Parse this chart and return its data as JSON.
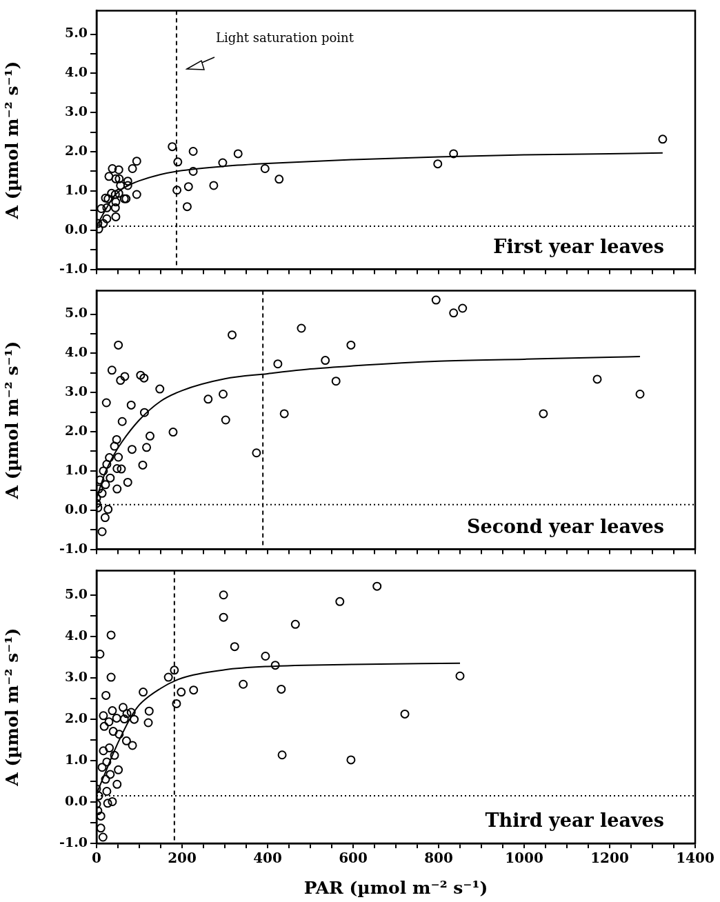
{
  "chart_data": [
    {
      "type": "scatter",
      "ylabel": "A (µmol m⁻² s⁻¹)",
      "xlim": [
        0,
        1400
      ],
      "ylim": [
        -1,
        5.6
      ],
      "tick_labels": "y",
      "xticks": [
        0,
        {
          "value": 50,
          "label": null
        },
        {
          "value": 100,
          "label": null
        },
        {
          "value": 150,
          "label": null
        },
        200,
        {
          "value": 250,
          "label": null
        },
        {
          "value": 300,
          "label": null
        },
        {
          "value": 350,
          "label": null
        },
        400,
        {
          "value": 450,
          "label": null
        },
        {
          "value": 500,
          "label": null
        },
        {
          "value": 550,
          "label": null
        },
        600,
        {
          "value": 650,
          "label": null
        },
        {
          "value": 700,
          "label": null
        },
        {
          "value": 750,
          "label": null
        },
        800,
        {
          "value": 850,
          "label": null
        },
        {
          "value": 900,
          "label": null
        },
        {
          "value": 950,
          "label": null
        },
        1000,
        {
          "value": 1050,
          "label": null
        },
        {
          "value": 1100,
          "label": null
        },
        {
          "value": 1150,
          "label": null
        },
        1200,
        {
          "value": 1250,
          "label": null
        },
        {
          "value": 1300,
          "label": null
        },
        {
          "value": 1350,
          "label": null
        },
        1400
      ],
      "yticks": [
        {
          "value": -1,
          "label": "-1.0"
        },
        {
          "value": -0.5,
          "label": null
        },
        {
          "value": 0,
          "label": "0.0"
        },
        {
          "value": 0.5,
          "label": null
        },
        {
          "value": 1,
          "label": "1.0"
        },
        {
          "value": 1.5,
          "label": null
        },
        {
          "value": 2,
          "label": "2.0"
        },
        {
          "value": 2.5,
          "label": null
        },
        {
          "value": 3,
          "label": "3.0"
        },
        {
          "value": 3.5,
          "label": null
        },
        {
          "value": 4,
          "label": "4.0"
        },
        {
          "value": 4.5,
          "label": null
        },
        {
          "value": 5,
          "label": "5.0"
        }
      ],
      "series": [
        {
          "type": "scatter",
          "marker": "circle",
          "color": "#000000",
          "x": [
            5,
            3,
            11,
            27,
            24,
            29,
            37,
            52,
            45,
            53,
            56,
            73,
            73,
            65,
            69,
            44,
            35,
            52,
            21,
            45,
            44,
            45,
            24,
            16,
            84,
            94,
            94,
            177,
            190,
            188,
            215,
            212,
            226,
            226,
            274,
            295,
            331,
            394,
            427,
            798,
            835,
            1324
          ],
          "values": [
            0.03,
            0.17,
            0.55,
            0.8,
            0.57,
            1.37,
            1.57,
            1.54,
            1.31,
            1.31,
            1.14,
            1.25,
            1.14,
            0.8,
            0.8,
            0.91,
            0.94,
            0.94,
            0.82,
            0.72,
            0.57,
            0.34,
            0.29,
            0.17,
            1.57,
            1.76,
            0.91,
            2.13,
            1.74,
            1.02,
            1.11,
            0.6,
            2.01,
            1.5,
            1.14,
            1.72,
            1.95,
            1.57,
            1.3,
            1.69,
            1.95,
            2.32
          ]
        },
        {
          "type": "line",
          "marker": "none",
          "color": "#000000",
          "x": [
            0,
            20,
            40,
            60,
            80,
            100,
            150,
            200,
            300,
            400,
            600,
            800,
            1000,
            1200,
            1324
          ],
          "values": [
            0.1,
            0.5,
            0.85,
            1.05,
            1.17,
            1.26,
            1.42,
            1.52,
            1.63,
            1.7,
            1.8,
            1.87,
            1.92,
            1.95,
            1.97
          ]
        }
      ],
      "ref_lines": [
        {
          "axis": "x",
          "value": 187,
          "line_style": "dashed"
        },
        {
          "axis": "y",
          "value": 0.1,
          "line_style": "dotted"
        }
      ],
      "annotations": [
        "First year leaves",
        "Light saturation point"
      ]
    },
    {
      "type": "scatter",
      "ylabel": "A (µmol m⁻² s⁻¹)",
      "xlim": [
        0,
        1400
      ],
      "ylim": [
        -1,
        5.6
      ],
      "tick_labels": "y",
      "xticks": [
        0,
        {
          "value": 50,
          "label": null
        },
        {
          "value": 100,
          "label": null
        },
        {
          "value": 150,
          "label": null
        },
        200,
        {
          "value": 250,
          "label": null
        },
        {
          "value": 300,
          "label": null
        },
        {
          "value": 350,
          "label": null
        },
        400,
        {
          "value": 450,
          "label": null
        },
        {
          "value": 500,
          "label": null
        },
        {
          "value": 550,
          "label": null
        },
        600,
        {
          "value": 650,
          "label": null
        },
        {
          "value": 700,
          "label": null
        },
        {
          "value": 750,
          "label": null
        },
        800,
        {
          "value": 850,
          "label": null
        },
        {
          "value": 900,
          "label": null
        },
        {
          "value": 950,
          "label": null
        },
        1000,
        {
          "value": 1050,
          "label": null
        },
        {
          "value": 1100,
          "label": null
        },
        {
          "value": 1150,
          "label": null
        },
        1200,
        {
          "value": 1250,
          "label": null
        },
        {
          "value": 1300,
          "label": null
        },
        {
          "value": 1350,
          "label": null
        },
        1400
      ],
      "yticks": [
        {
          "value": -1,
          "label": "-1.0"
        },
        {
          "value": -0.5,
          "label": null
        },
        {
          "value": 0,
          "label": "0.0"
        },
        {
          "value": 0.5,
          "label": null
        },
        {
          "value": 1,
          "label": "1.0"
        },
        {
          "value": 1.5,
          "label": null
        },
        {
          "value": 2,
          "label": "2.0"
        },
        {
          "value": 2.5,
          "label": null
        },
        {
          "value": 3,
          "label": "3.0"
        },
        {
          "value": 3.5,
          "label": null
        },
        {
          "value": 4,
          "label": "4.0"
        },
        {
          "value": 4.5,
          "label": null
        },
        {
          "value": 5,
          "label": "5.0"
        }
      ],
      "series": [
        {
          "type": "scatter",
          "marker": "circle",
          "color": "#000000",
          "x": [
            51,
            36,
            56,
            66,
            103,
            111,
            148,
            23,
            81,
            112,
            60,
            125,
            179,
            83,
            117,
            108,
            47,
            42,
            51,
            30,
            58,
            48,
            73,
            48,
            24,
            16,
            32,
            8,
            21,
            5,
            13,
            0,
            0,
            3,
            27,
            20,
            13,
            261,
            296,
            302,
            317,
            374,
            424,
            439,
            479,
            535,
            560,
            595,
            794,
            835,
            856,
            1045,
            1171,
            1271
          ],
          "values": [
            4.21,
            3.57,
            3.31,
            3.41,
            3.44,
            3.37,
            3.09,
            2.74,
            2.68,
            2.49,
            2.26,
            1.89,
            1.99,
            1.55,
            1.6,
            1.15,
            1.8,
            1.63,
            1.35,
            1.34,
            1.05,
            1.06,
            0.71,
            0.54,
            1.17,
            1.0,
            0.82,
            0.77,
            0.65,
            0.54,
            0.43,
            0.31,
            0.17,
            0.06,
            0.02,
            -0.19,
            -0.55,
            2.83,
            2.96,
            2.3,
            4.47,
            1.46,
            3.73,
            2.46,
            4.64,
            3.82,
            3.29,
            4.21,
            5.36,
            5.03,
            5.15,
            2.46,
            3.34,
            2.96
          ]
        },
        {
          "type": "line",
          "marker": "none",
          "color": "#000000",
          "x": [
            0,
            20,
            40,
            60,
            100,
            150,
            200,
            300,
            400,
            500,
            600,
            800,
            1000,
            1200,
            1271
          ],
          "values": [
            0.3,
            0.95,
            1.4,
            1.75,
            2.3,
            2.78,
            3.05,
            3.35,
            3.48,
            3.6,
            3.68,
            3.8,
            3.85,
            3.9,
            3.92
          ]
        }
      ],
      "ref_lines": [
        {
          "axis": "x",
          "value": 389,
          "line_style": "dashed"
        },
        {
          "axis": "y",
          "value": 0.14,
          "line_style": "dotted"
        }
      ],
      "annotations": [
        "Second year leaves"
      ]
    },
    {
      "type": "scatter",
      "xlabel": "PAR (µmol m⁻² s⁻¹)",
      "ylabel": "A (µmol m⁻² s⁻¹)",
      "xlim": [
        0,
        1400
      ],
      "ylim": [
        -1,
        5.6
      ],
      "xticks": [
        0,
        {
          "value": 50,
          "label": null
        },
        {
          "value": 100,
          "label": null
        },
        {
          "value": 150,
          "label": null
        },
        200,
        {
          "value": 250,
          "label": null
        },
        {
          "value": 300,
          "label": null
        },
        {
          "value": 350,
          "label": null
        },
        400,
        {
          "value": 450,
          "label": null
        },
        {
          "value": 500,
          "label": null
        },
        {
          "value": 550,
          "label": null
        },
        600,
        {
          "value": 650,
          "label": null
        },
        {
          "value": 700,
          "label": null
        },
        {
          "value": 750,
          "label": null
        },
        800,
        {
          "value": 850,
          "label": null
        },
        {
          "value": 900,
          "label": null
        },
        {
          "value": 950,
          "label": null
        },
        1000,
        {
          "value": 1050,
          "label": null
        },
        {
          "value": 1100,
          "label": null
        },
        {
          "value": 1150,
          "label": null
        },
        1200,
        {
          "value": 1250,
          "label": null
        },
        {
          "value": 1300,
          "label": null
        },
        {
          "value": 1350,
          "label": null
        },
        1400
      ],
      "yticks": [
        {
          "value": -1,
          "label": "-1.0"
        },
        {
          "value": -0.5,
          "label": null
        },
        {
          "value": 0,
          "label": "0.0"
        },
        {
          "value": 0.5,
          "label": null
        },
        {
          "value": 1,
          "label": "1.0"
        },
        {
          "value": 1.5,
          "label": null
        },
        {
          "value": 2,
          "label": "2.0"
        },
        {
          "value": 2.5,
          "label": null
        },
        {
          "value": 3,
          "label": "3.0"
        },
        {
          "value": 3.5,
          "label": null
        },
        {
          "value": 4,
          "label": "4.0"
        },
        {
          "value": 4.5,
          "label": null
        },
        {
          "value": 5,
          "label": "5.0"
        }
      ],
      "series": [
        {
          "type": "scatter",
          "marker": "circle",
          "color": "#000000",
          "x": [
            297,
            297,
            323,
            395,
            343,
            182,
            168,
            198,
            227,
            187,
            109,
            123,
            121,
            34,
            8,
            34,
            22,
            37,
            16,
            18,
            29,
            47,
            62,
            71,
            81,
            88,
            65,
            39,
            53,
            70,
            84,
            16,
            30,
            42,
            24,
            13,
            51,
            32,
            48,
            21,
            0,
            5,
            24,
            26,
            37,
            0,
            3,
            10,
            10,
            15,
            569,
            656,
            465,
            418,
            432,
            434,
            595,
            721,
            850
          ],
          "values": [
            5.01,
            4.47,
            3.76,
            3.53,
            2.85,
            3.19,
            3.02,
            2.66,
            2.71,
            2.38,
            2.66,
            2.2,
            1.92,
            4.04,
            3.58,
            3.02,
            2.58,
            2.21,
            2.09,
            1.83,
            1.94,
            2.03,
            2.29,
            2.14,
            2.17,
            2.0,
            2.01,
            1.71,
            1.64,
            1.48,
            1.37,
            1.24,
            1.31,
            1.13,
            0.97,
            0.84,
            0.78,
            0.67,
            0.43,
            0.55,
            0.32,
            0.15,
            0.26,
            -0.03,
            0.01,
            -0.05,
            -0.21,
            -0.34,
            -0.63,
            -0.85,
            4.85,
            5.22,
            4.3,
            3.31,
            2.73,
            1.14,
            1.02,
            2.13,
            3.05
          ]
        },
        {
          "type": "line",
          "marker": "none",
          "color": "#000000",
          "x": [
            0,
            20,
            40,
            60,
            80,
            100,
            150,
            200,
            300,
            400,
            600,
            850
          ],
          "values": [
            0.2,
            0.7,
            1.2,
            1.65,
            2.05,
            2.35,
            2.75,
            3.0,
            3.2,
            3.28,
            3.33,
            3.36
          ]
        }
      ],
      "ref_lines": [
        {
          "axis": "x",
          "value": 182,
          "line_style": "dashed"
        },
        {
          "axis": "y",
          "value": 0.15,
          "line_style": "dotted"
        }
      ],
      "annotations": [
        "Third year leaves"
      ]
    }
  ]
}
